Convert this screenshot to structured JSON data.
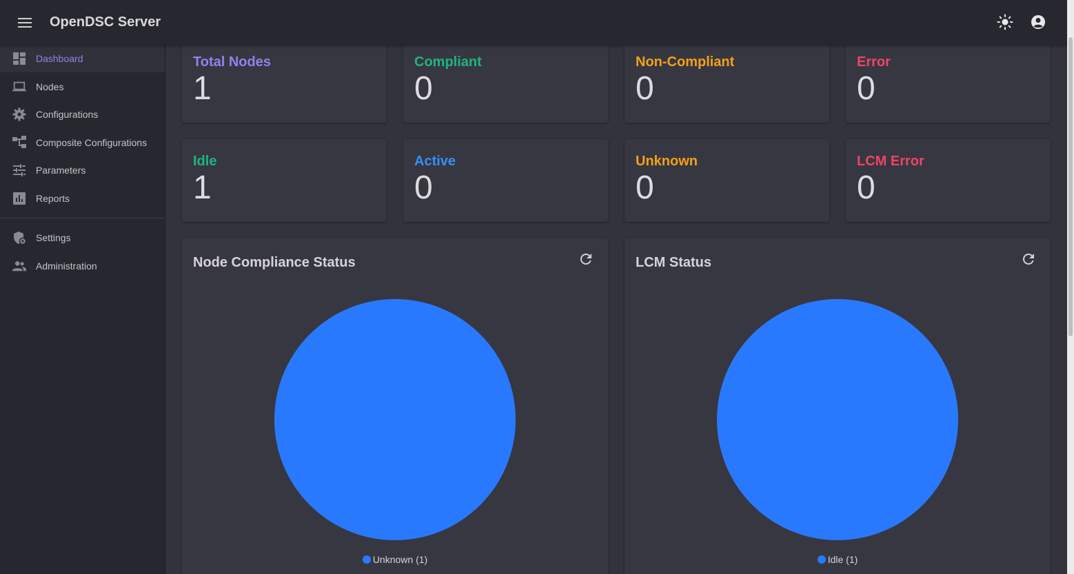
{
  "app": {
    "title": "OpenDSC Server"
  },
  "colors": {
    "accent": "#8c84f0",
    "green": "#1fb57f",
    "orange": "#f5a017",
    "red": "#ee4466",
    "blue": "#3391f5",
    "pie": "#2979ff"
  },
  "sidebar": {
    "items": [
      {
        "label": "Dashboard",
        "icon": "dashboard-icon",
        "active": true
      },
      {
        "label": "Nodes",
        "icon": "laptop-icon"
      },
      {
        "label": "Configurations",
        "icon": "gear-icon"
      },
      {
        "label": "Composite Configurations",
        "icon": "account-tree-icon"
      },
      {
        "label": "Parameters",
        "icon": "tune-icon"
      },
      {
        "label": "Reports",
        "icon": "bar-chart-icon"
      }
    ],
    "secondary": [
      {
        "label": "Settings",
        "icon": "shield-gear-icon"
      },
      {
        "label": "Administration",
        "icon": "people-icon"
      }
    ]
  },
  "stats": {
    "total_nodes": {
      "label": "Total Nodes",
      "value": "1"
    },
    "compliant": {
      "label": "Compliant",
      "value": "0"
    },
    "non_compliant": {
      "label": "Non-Compliant",
      "value": "0"
    },
    "error": {
      "label": "Error",
      "value": "0"
    },
    "idle": {
      "label": "Idle",
      "value": "1"
    },
    "active": {
      "label": "Active",
      "value": "0"
    },
    "unknown": {
      "label": "Unknown",
      "value": "0"
    },
    "lcm_error": {
      "label": "LCM Error",
      "value": "0"
    }
  },
  "chart_data": [
    {
      "type": "pie",
      "title": "Node Compliance Status",
      "categories": [
        "Unknown"
      ],
      "values": [
        1
      ],
      "legend": "Unknown (1)",
      "color": "#2979ff"
    },
    {
      "type": "pie",
      "title": "LCM Status",
      "categories": [
        "Idle"
      ],
      "values": [
        1
      ],
      "legend": "Idle (1)",
      "color": "#2979ff"
    }
  ]
}
